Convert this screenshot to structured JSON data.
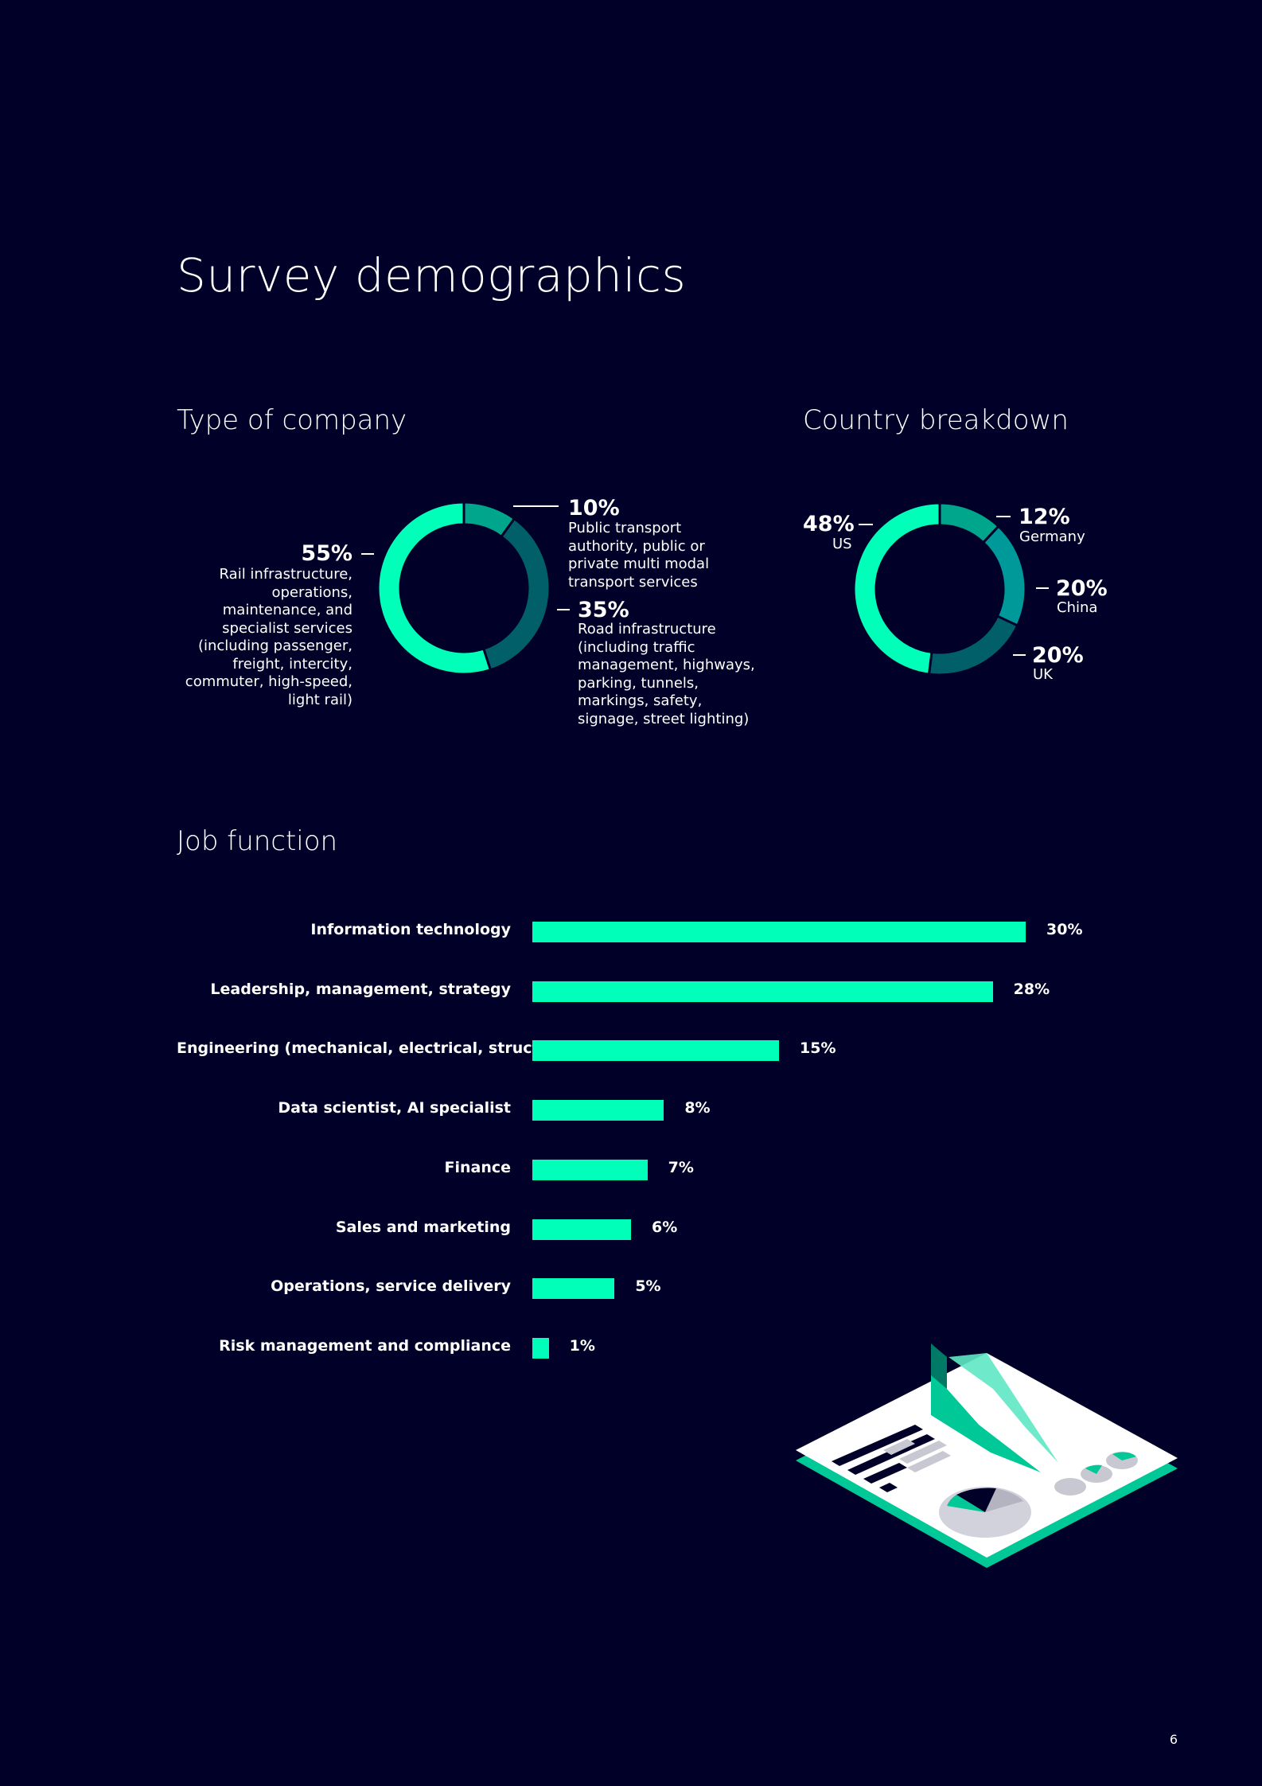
{
  "page": {
    "title": "Survey demographics",
    "page_number": "6"
  },
  "company": {
    "title": "Type of company",
    "items": [
      {
        "pct": "55%",
        "desc": "Rail infrastructure, operations, maintenance, and specialist services (including passenger, freight, intercity, commuter, high-speed, light rail)"
      },
      {
        "pct": "10%",
        "desc": "Public transport authority, public or private multi modal transport services"
      },
      {
        "pct": "35%",
        "desc": "Road infrastructure (including traffic management, highways, parking, tunnels, markings, safety, signage, street lighting)"
      }
    ]
  },
  "country": {
    "title": "Country breakdown",
    "items": [
      {
        "pct": "48%",
        "label": "US"
      },
      {
        "pct": "12%",
        "label": "Germany"
      },
      {
        "pct": "20%",
        "label": "China"
      },
      {
        "pct": "20%",
        "label": "UK"
      }
    ]
  },
  "job": {
    "title": "Job function"
  },
  "colors": {
    "background": "#000028",
    "accent": "#00ffb9",
    "teal_mid": "#009999",
    "teal_light": "#00a68c",
    "teal_dark": "#005f68"
  },
  "chart_data": [
    {
      "type": "pie",
      "title": "Type of company",
      "categories": [
        "Rail infrastructure, operations, maintenance, and specialist services",
        "Public transport authority, public or private multi modal transport services",
        "Road infrastructure"
      ],
      "values": [
        55,
        10,
        35
      ],
      "unit": "%"
    },
    {
      "type": "pie",
      "title": "Country breakdown",
      "categories": [
        "US",
        "Germany",
        "China",
        "UK"
      ],
      "values": [
        48,
        12,
        20,
        20
      ],
      "unit": "%"
    },
    {
      "type": "bar",
      "orientation": "horizontal",
      "title": "Job function",
      "categories": [
        "Information technology",
        "Leadership, management, strategy",
        "Engineering (mechanical, electrical, structural)",
        "Data scientist, AI specialist",
        "Finance",
        "Sales and marketing",
        "Operations, service delivery",
        "Risk management and compliance"
      ],
      "values": [
        30,
        28,
        15,
        8,
        7,
        6,
        5,
        1
      ],
      "value_labels": [
        "30%",
        "28%",
        "15%",
        "8%",
        "7%",
        "6%",
        "5%",
        "1%"
      ],
      "unit": "%",
      "xlim": [
        0,
        30
      ]
    }
  ]
}
